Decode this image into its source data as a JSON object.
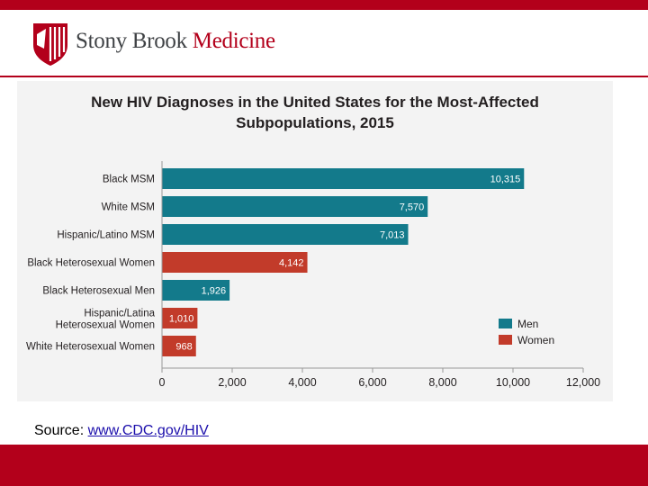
{
  "header": {
    "brand_part1": "Stony Brook",
    "brand_part2": "Medicine",
    "brand_color": "#b3001b",
    "logo_icon": "shield-logo-icon"
  },
  "chart_data": {
    "type": "bar",
    "orientation": "horizontal",
    "title_line1": "New HIV Diagnoses in the United States for the Most-Affected",
    "title_line2": "Subpopulations, 2015",
    "categories": [
      "Black MSM",
      "White MSM",
      "Hispanic/Latino MSM",
      "Black Heterosexual Women",
      "Black Heterosexual Men",
      "Hispanic/Latina Heterosexual Women",
      "White Heterosexual Women"
    ],
    "values": [
      10315,
      7570,
      7013,
      4142,
      1926,
      1010,
      968
    ],
    "value_labels": [
      "10,315",
      "7,570",
      "7,013",
      "4,142",
      "1,926",
      "1,010",
      "968"
    ],
    "groups": [
      "Men",
      "Men",
      "Men",
      "Women",
      "Men",
      "Women",
      "Women"
    ],
    "legend": [
      {
        "name": "Men",
        "color": "#137a8b"
      },
      {
        "name": "Women",
        "color": "#c23b2a"
      }
    ],
    "legend_position": "bottom-right",
    "xlim": [
      0,
      12000
    ],
    "xticks": [
      0,
      2000,
      4000,
      6000,
      8000,
      10000,
      12000
    ],
    "xtick_labels": [
      "0",
      "2,000",
      "4,000",
      "6,000",
      "8,000",
      "10,000",
      "12,000"
    ],
    "xlabel": "",
    "ylabel": ""
  },
  "footer": {
    "source_label": "Source:",
    "source_link": "www.CDC.gov/HIV"
  }
}
